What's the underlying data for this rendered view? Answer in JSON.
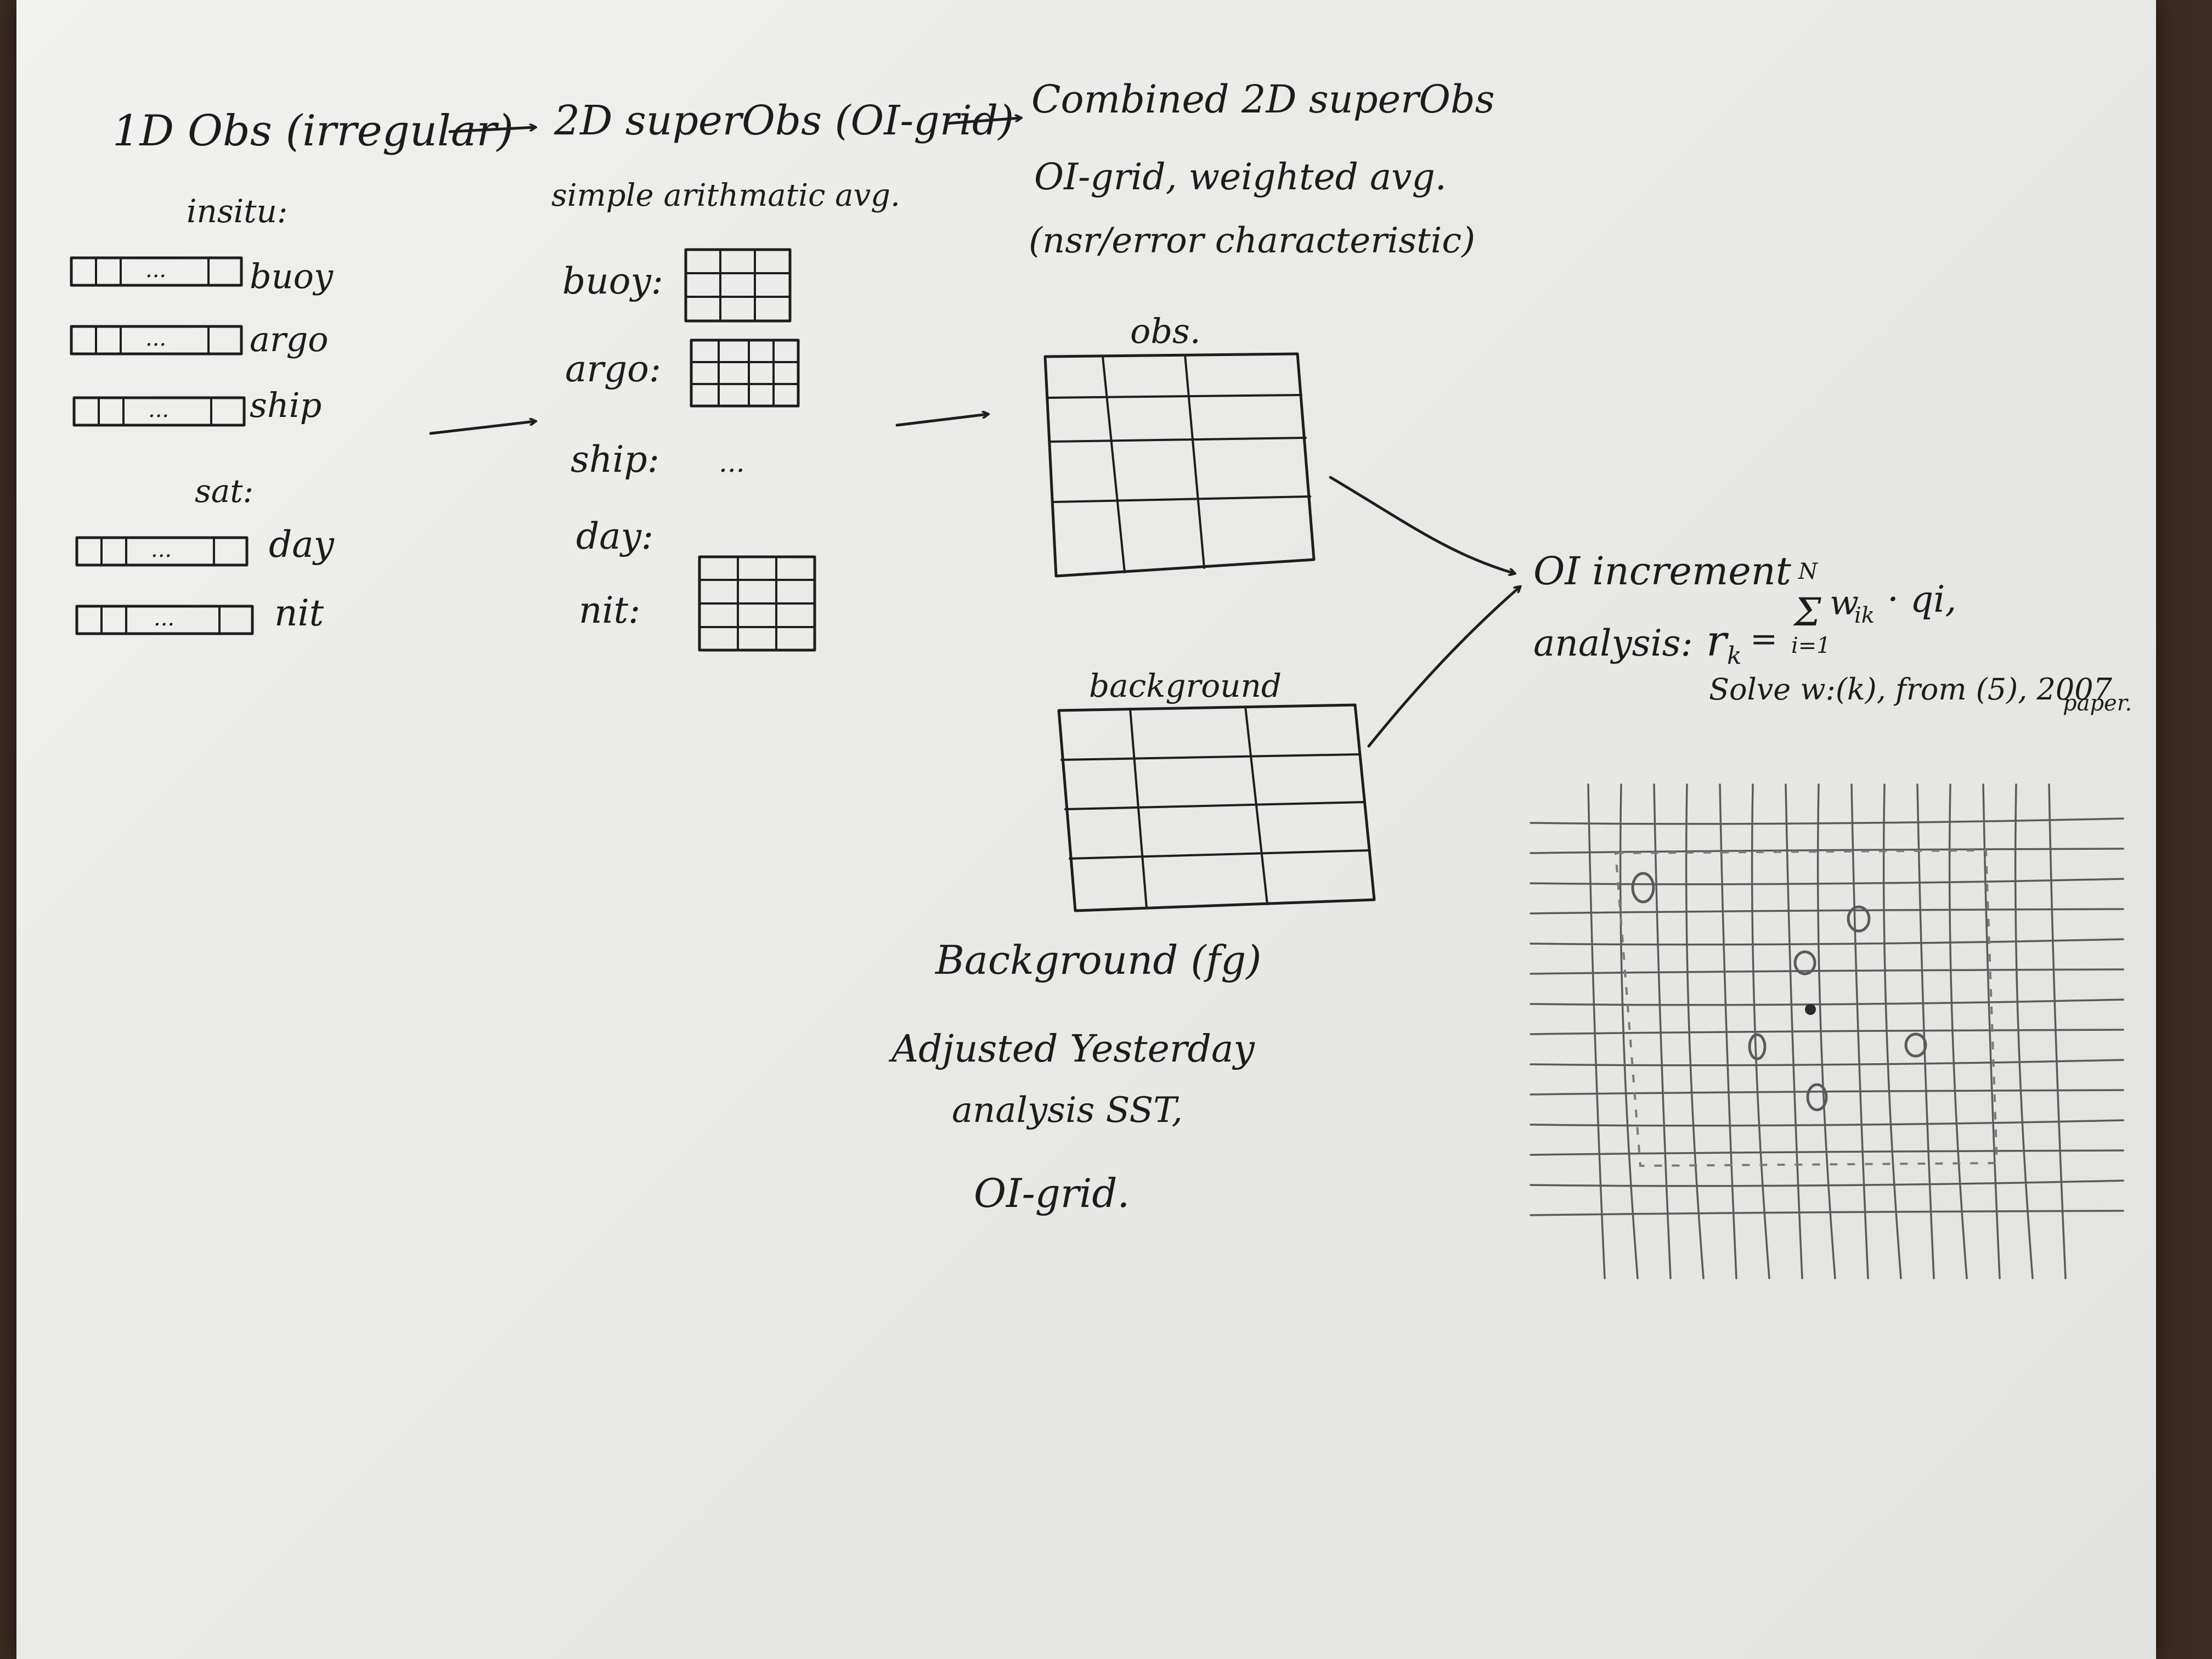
{
  "header": {
    "col1_title": "1D Obs (irregular)",
    "col2_title": "2D superObs (OI-grid)",
    "col3_title": "Combined 2D superObs"
  },
  "col1": {
    "insitu_label": "insitu:",
    "sat_label": "sat:",
    "items": [
      "buoy",
      "argo",
      "ship",
      "day",
      "nit"
    ],
    "dots": "..."
  },
  "col2": {
    "note": "simple arithmatic avg.",
    "items": [
      "buoy:",
      "argo:",
      "ship:",
      "day:",
      "nit:"
    ],
    "ship_ellipsis": "..."
  },
  "col3": {
    "line2": "OI-grid, weighted avg.",
    "line3": "(nsr/error characteristic)",
    "obs_label": "obs.",
    "background_label": "background",
    "bg_caption1": "Background (fg)",
    "bg_caption2": "Adjusted Yesterday",
    "bg_caption3": "analysis SST,",
    "bg_caption4": "OI-grid."
  },
  "right": {
    "oi_title": "OI increment",
    "analysis_prefix": "analysis:",
    "formula_lhs": "r",
    "formula_sub": "k",
    "formula_eq": "=",
    "sum_top": "N",
    "sum_sym": "Σ",
    "sum_bottom": "i=1",
    "formula_rhs": "w",
    "formula_rhs_sub": "ik",
    "formula_tail": "· qi,",
    "solve_note": "Solve w:(k), from (5), 2007",
    "solve_note2": "paper."
  },
  "colors": {
    "ink": "#1e1e1e",
    "pencil": "#5a5a5a",
    "paper": "#ececea"
  }
}
